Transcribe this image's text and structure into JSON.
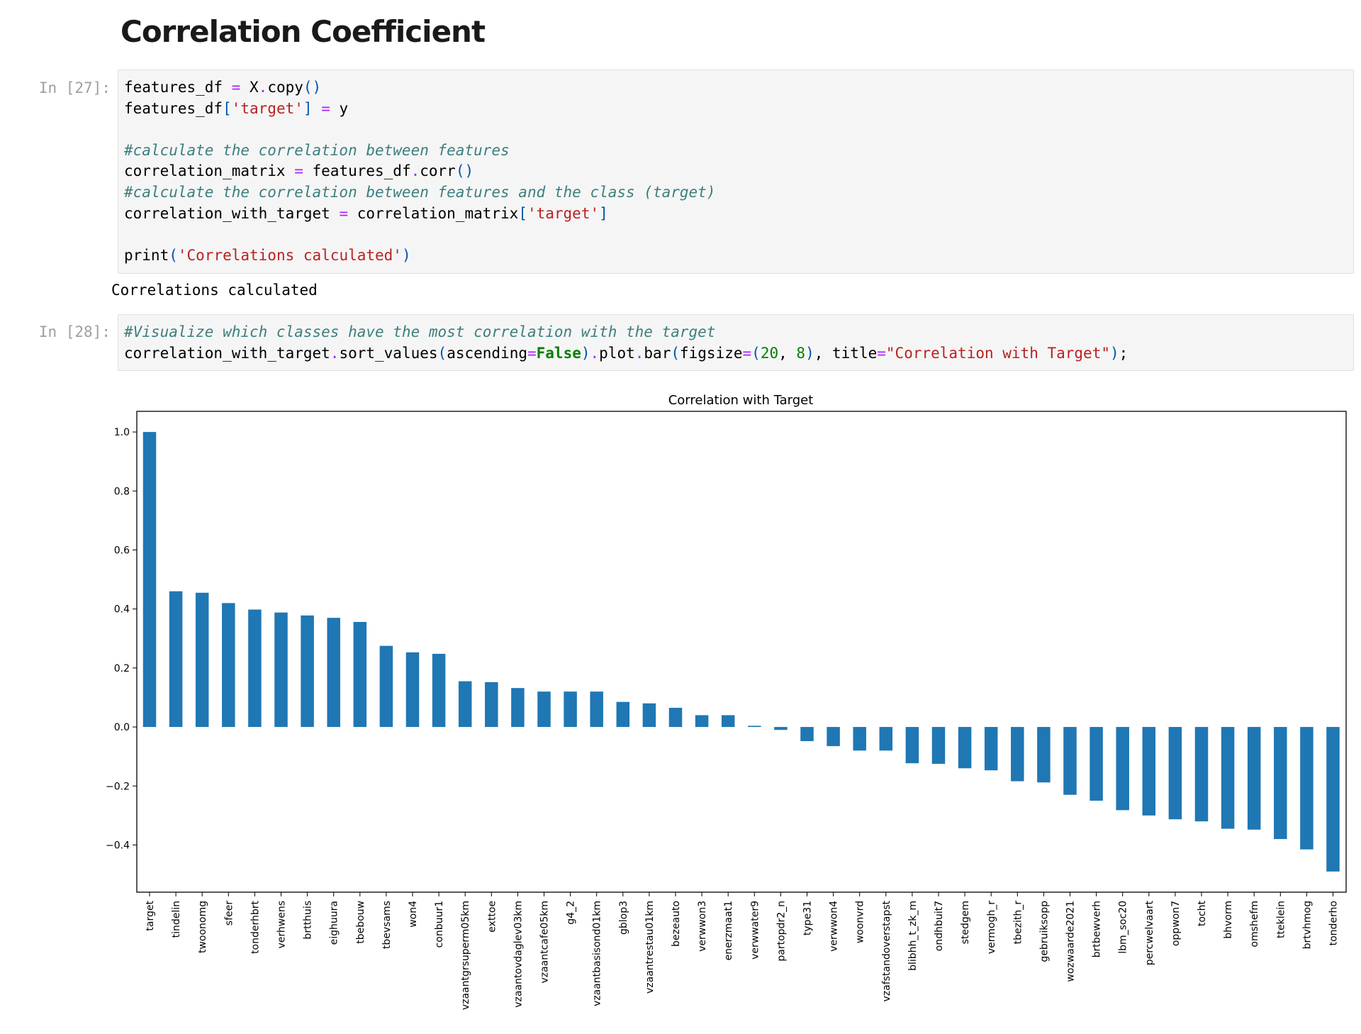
{
  "heading": "Correlation Coefficient",
  "cells": [
    {
      "prompt": "In [27]:",
      "lines": [
        [
          {
            "t": "",
            "v": "features_df "
          },
          {
            "t": "op",
            "v": "="
          },
          {
            "t": "",
            "v": " X"
          },
          {
            "t": "op",
            "v": "."
          },
          {
            "t": "",
            "v": "copy"
          },
          {
            "t": "pa",
            "v": "()"
          }
        ],
        [
          {
            "t": "",
            "v": "features_df"
          },
          {
            "t": "pa",
            "v": "["
          },
          {
            "t": "st",
            "v": "'target'"
          },
          {
            "t": "pa",
            "v": "]"
          },
          {
            "t": "",
            "v": " "
          },
          {
            "t": "op",
            "v": "="
          },
          {
            "t": "",
            "v": " y"
          }
        ],
        [],
        [
          {
            "t": "cm",
            "v": "#calculate the correlation between features"
          }
        ],
        [
          {
            "t": "",
            "v": "correlation_matrix "
          },
          {
            "t": "op",
            "v": "="
          },
          {
            "t": "",
            "v": " features_df"
          },
          {
            "t": "op",
            "v": "."
          },
          {
            "t": "",
            "v": "corr"
          },
          {
            "t": "pa",
            "v": "()"
          }
        ],
        [
          {
            "t": "cm",
            "v": "#calculate the correlation between features and the class (target)"
          }
        ],
        [
          {
            "t": "",
            "v": "correlation_with_target "
          },
          {
            "t": "op",
            "v": "="
          },
          {
            "t": "",
            "v": " correlation_matrix"
          },
          {
            "t": "pa",
            "v": "["
          },
          {
            "t": "st",
            "v": "'target'"
          },
          {
            "t": "pa",
            "v": "]"
          }
        ],
        [],
        [
          {
            "t": "",
            "v": "print"
          },
          {
            "t": "pa",
            "v": "("
          },
          {
            "t": "st",
            "v": "'Correlations calculated'"
          },
          {
            "t": "pa",
            "v": ")"
          }
        ]
      ],
      "output": "Correlations calculated"
    },
    {
      "prompt": "In [28]:",
      "lines": [
        [
          {
            "t": "cm",
            "v": "#Visualize which classes have the most correlation with the target"
          }
        ],
        [
          {
            "t": "",
            "v": "correlation_with_target"
          },
          {
            "t": "op",
            "v": "."
          },
          {
            "t": "",
            "v": "sort_values"
          },
          {
            "t": "pa",
            "v": "("
          },
          {
            "t": "",
            "v": "ascending"
          },
          {
            "t": "op",
            "v": "="
          },
          {
            "t": "kw",
            "v": "False"
          },
          {
            "t": "pa",
            "v": ")"
          },
          {
            "t": "op",
            "v": "."
          },
          {
            "t": "",
            "v": "plot"
          },
          {
            "t": "op",
            "v": "."
          },
          {
            "t": "",
            "v": "bar"
          },
          {
            "t": "pa",
            "v": "("
          },
          {
            "t": "",
            "v": "figsize"
          },
          {
            "t": "op",
            "v": "="
          },
          {
            "t": "pa",
            "v": "("
          },
          {
            "t": "nu",
            "v": "20"
          },
          {
            "t": "",
            "v": ", "
          },
          {
            "t": "nu",
            "v": "8"
          },
          {
            "t": "pa",
            "v": ")"
          },
          {
            "t": "",
            "v": ", title"
          },
          {
            "t": "op",
            "v": "="
          },
          {
            "t": "st",
            "v": "\"Correlation with Target\""
          },
          {
            "t": "pa",
            "v": ")"
          },
          {
            "t": "",
            "v": ";"
          }
        ]
      ],
      "output": ""
    }
  ],
  "colors": {
    "bar": "#1f77b4",
    "comment": "#3d7e7e",
    "string": "#ba2121",
    "keyword": "#008000",
    "operator": "#aa22ff"
  },
  "chart_data": {
    "type": "bar",
    "title": "Correlation with Target",
    "xlabel": "",
    "ylabel": "",
    "ylim": [
      -0.56,
      1.07
    ],
    "yticks": [
      -0.4,
      -0.2,
      0.0,
      0.2,
      0.4,
      0.6,
      0.8,
      1.0
    ],
    "ytick_labels": [
      "−0.4",
      "−0.2",
      "0.0",
      "0.2",
      "0.4",
      "0.6",
      "0.8",
      "1.0"
    ],
    "grid": false,
    "categories": [
      "target",
      "tindelin",
      "twoonomg",
      "sfeer",
      "tonderhbrt",
      "verhwens",
      "brtthuis",
      "eighuura",
      "tbebouw",
      "tbevsams",
      "won4",
      "conbuur1",
      "vzaantgrsuperm05km",
      "exttoe",
      "vzaantovdaglev03km",
      "vzaantcafe05km",
      "g4_2",
      "vzaantbasisond01km",
      "gblop3",
      "vzaantrestau01km",
      "bezeauto",
      "verwwon3",
      "enerzmaat1",
      "verwwater9",
      "partopdr2_n",
      "type31",
      "verwwon4",
      "woonvrd",
      "vzafstandoverstapst",
      "blibhh_t_zk_m",
      "ondhbuit7",
      "stedgem",
      "vermogh_r",
      "tbezith_r",
      "gebruiksopp",
      "wozwaarde2021",
      "brtbewverh",
      "lbm_soc20",
      "percwelvaart",
      "oppwon7",
      "tocht",
      "bhvorm",
      "omshefm",
      "tteklein",
      "brtvhmog",
      "tonderho"
    ],
    "values": [
      1.0,
      0.46,
      0.455,
      0.42,
      0.398,
      0.388,
      0.378,
      0.37,
      0.356,
      0.275,
      0.253,
      0.248,
      0.155,
      0.152,
      0.132,
      0.12,
      0.12,
      0.12,
      0.085,
      0.08,
      0.065,
      0.04,
      0.04,
      0.004,
      -0.01,
      -0.048,
      -0.065,
      -0.08,
      -0.08,
      -0.123,
      -0.125,
      -0.14,
      -0.147,
      -0.184,
      -0.188,
      -0.23,
      -0.25,
      -0.282,
      -0.3,
      -0.313,
      -0.32,
      -0.345,
      -0.348,
      -0.38,
      -0.415,
      -0.49
    ]
  }
}
